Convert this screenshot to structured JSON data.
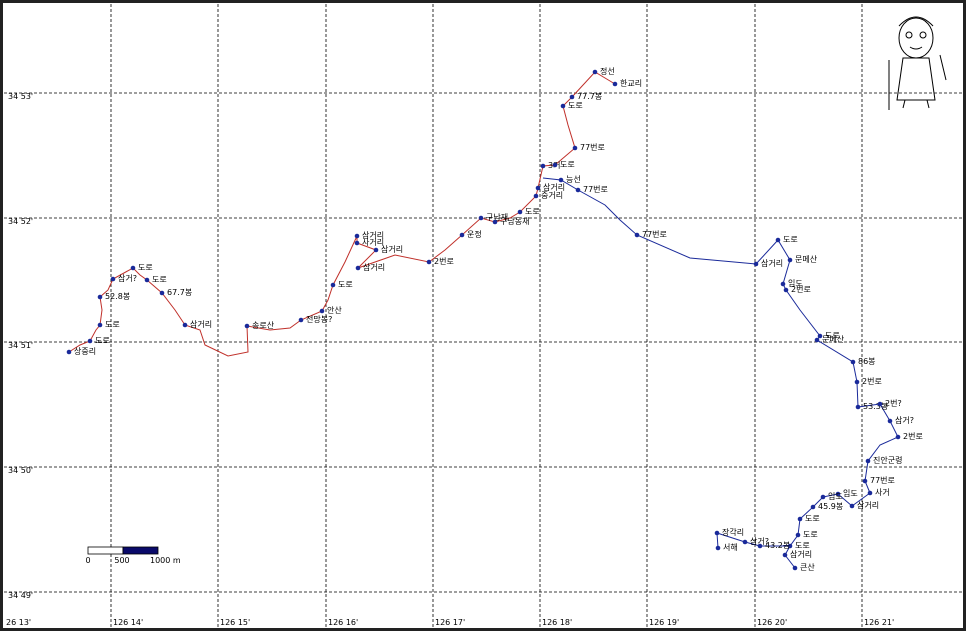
{
  "axes": {
    "longitude_labels": [
      "26 13'",
      "126 14'",
      "126 15'",
      "126 16'",
      "126 17'",
      "126 18'",
      "126 19'",
      "126 20'",
      "126 21'"
    ],
    "latitude_labels": [
      "34 53'",
      "34 52'",
      "34 51'",
      "34 50'",
      "34 49'"
    ]
  },
  "waypoints": [
    "상중리",
    "도로",
    "도로",
    "52.8봉",
    "삼거?",
    "도로",
    "도로",
    "67.7봉",
    "삼거리",
    "송로산",
    "전망봉?",
    "안산",
    "도로",
    "삼거리",
    "사거리",
    "삼거리",
    "삼거리",
    "2번로",
    "운정",
    "구남재",
    "구남동재",
    "도로",
    "중거리",
    "삼거리",
    "3거",
    "도로",
    "77번로",
    "도로",
    "77.7봉",
    "정선",
    "한교리",
    "능선",
    "77번로",
    "77번로",
    "삼거리",
    "도로",
    "문메산",
    "임도",
    "2번로",
    "도로",
    "문메산",
    "86봉",
    "2번로",
    "53.3봉",
    "2번?",
    "삼거?",
    "2번로",
    "진안군령",
    "77번로",
    "사거",
    "삼거리",
    "임도",
    "임도",
    "45.9봉",
    "도로",
    "도로",
    "도로",
    "삼거리",
    "큰산",
    "43.2봉",
    "삼거?",
    "장각리",
    "서해"
  ],
  "scale_bar": {
    "labels": [
      "0",
      "500",
      "1000 m"
    ]
  }
}
